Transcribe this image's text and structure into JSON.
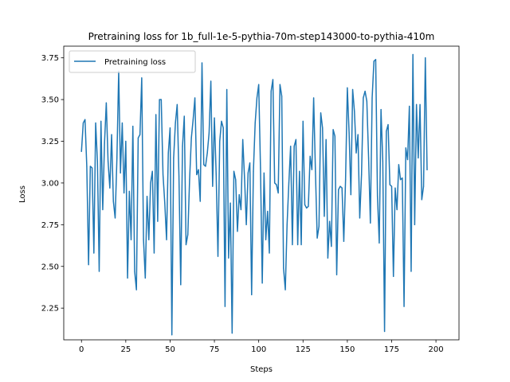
{
  "chart_data": {
    "type": "line",
    "title": "Pretraining loss for 1b_full-1e-5-pythia-70m-step143000-to-pythia-410m",
    "xlabel": "Steps",
    "ylabel": "Loss",
    "xlim": [
      -10,
      213
    ],
    "ylim": [
      2.06,
      3.82
    ],
    "xticks": [
      0,
      25,
      50,
      75,
      100,
      125,
      150,
      175,
      200
    ],
    "yticks": [
      2.25,
      2.5,
      2.75,
      3.0,
      3.25,
      3.5,
      3.75
    ],
    "ytick_labels": [
      "2.25",
      "2.50",
      "2.75",
      "3.00",
      "3.25",
      "3.50",
      "3.75"
    ],
    "grid": false,
    "legend": "upper-left",
    "colors": {
      "series": "#1f77b4"
    },
    "series": [
      {
        "name": "Pretraining loss",
        "values": [
          3.19,
          3.36,
          3.38,
          3.1,
          2.51,
          3.1,
          3.09,
          2.58,
          3.36,
          3.13,
          2.47,
          3.37,
          2.84,
          3.24,
          3.48,
          3.13,
          2.97,
          3.29,
          2.89,
          2.79,
          3.15,
          3.67,
          3.06,
          3.36,
          2.94,
          3.25,
          2.43,
          2.95,
          2.66,
          3.34,
          2.47,
          2.36,
          3.27,
          3.29,
          3.63,
          2.66,
          2.43,
          2.92,
          2.66,
          3.0,
          3.07,
          2.58,
          3.41,
          2.77,
          3.5,
          3.5,
          3.05,
          2.88,
          2.66,
          3.18,
          3.33,
          2.09,
          3.15,
          3.36,
          3.47,
          3.04,
          2.39,
          3.22,
          3.4,
          2.63,
          2.69,
          3.02,
          3.27,
          3.38,
          3.51,
          3.05,
          3.08,
          2.89,
          3.72,
          3.11,
          3.1,
          3.18,
          3.3,
          3.61,
          2.98,
          3.39,
          3.05,
          2.56,
          3.25,
          3.37,
          3.33,
          2.26,
          3.56,
          2.55,
          2.88,
          2.1,
          3.07,
          3.02,
          2.71,
          2.93,
          2.84,
          3.26,
          3.03,
          2.75,
          3.06,
          3.12,
          2.33,
          3.07,
          3.36,
          3.51,
          3.59,
          3.09,
          2.4,
          3.06,
          2.66,
          2.83,
          2.58,
          3.55,
          3.62,
          3.0,
          2.99,
          2.94,
          3.59,
          3.52,
          2.49,
          2.36,
          2.75,
          3.0,
          3.22,
          2.63,
          3.22,
          3.26,
          2.63,
          3.07,
          2.63,
          3.37,
          2.87,
          2.85,
          2.86,
          3.16,
          3.08,
          3.51,
          3.07,
          2.67,
          2.74,
          3.42,
          3.33,
          2.8,
          3.26,
          2.55,
          2.77,
          2.62,
          3.32,
          3.28,
          2.45,
          2.96,
          2.98,
          2.97,
          2.65,
          3.02,
          3.57,
          3.3,
          2.93,
          3.56,
          3.43,
          3.18,
          3.29,
          2.79,
          3.05,
          3.51,
          3.55,
          3.49,
          3.15,
          2.76,
          3.51,
          3.73,
          3.74,
          2.92,
          2.64,
          3.44,
          3.13,
          2.11,
          3.31,
          3.35,
          2.99,
          2.98,
          2.44,
          2.97,
          2.84,
          3.11,
          3.02,
          3.03,
          2.26,
          3.21,
          3.14,
          3.46,
          2.47,
          3.77,
          2.75,
          3.47,
          3.15,
          3.47,
          2.9,
          2.98,
          3.75,
          3.08
        ]
      }
    ]
  }
}
